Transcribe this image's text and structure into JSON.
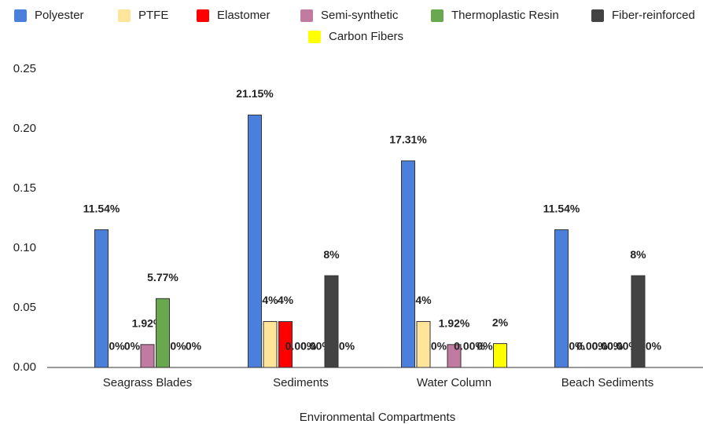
{
  "chart_data": {
    "type": "bar",
    "x_label": "Environmental Compartments",
    "categories": [
      "Seagrass Blades",
      "Sediments",
      "Water Column",
      "Beach Sediments"
    ],
    "series": [
      {
        "name": "Polyester",
        "color": "#4a7fdc",
        "values": [
          0.1154,
          0.2115,
          0.1731,
          0.1154
        ],
        "value_labels": [
          "11.54%",
          "21.15%",
          "17.31%",
          "11.54%"
        ]
      },
      {
        "name": "PTFE",
        "color": "#ffe599",
        "values": [
          0,
          0.0385,
          0.0385,
          0
        ],
        "value_labels": [
          "0%",
          "4%",
          "4%",
          "0%"
        ]
      },
      {
        "name": "Elastomer",
        "color": "#ff0000",
        "values": [
          0,
          0.0385,
          0,
          0
        ],
        "value_labels": [
          "0%",
          "4%",
          "0%",
          "0.00%"
        ]
      },
      {
        "name": "Semi-synthetic",
        "color": "#c27ba0",
        "values": [
          0.0192,
          0,
          0.0192,
          0
        ],
        "value_labels": [
          "1.92%",
          "0.00%",
          "1.92%",
          "0.00%"
        ]
      },
      {
        "name": "Thermoplastic Resin",
        "color": "#6aa84f",
        "values": [
          0.0577,
          0,
          0,
          0
        ],
        "value_labels": [
          "5.77%",
          "0.00%",
          "0.00%",
          "0.00%"
        ]
      },
      {
        "name": "Fiber-reinforced",
        "color": "#434343",
        "values": [
          0,
          0.0769,
          0,
          0.0769
        ],
        "value_labels": [
          "0%",
          "8%",
          "0%",
          "8%"
        ]
      },
      {
        "name": "Carbon Fibers",
        "color": "#ffff00",
        "values": [
          0,
          0,
          0.02,
          0
        ],
        "value_labels": [
          "0%",
          "0%",
          "2%",
          "0%"
        ]
      }
    ],
    "ylim": [
      0,
      0.25
    ],
    "yticks": [
      {
        "value": 0,
        "label": "0.00"
      },
      {
        "value": 0.05,
        "label": "0.05"
      },
      {
        "value": 0.1,
        "label": "0.10"
      },
      {
        "value": 0.15,
        "label": "0.15"
      },
      {
        "value": 0.2,
        "label": "0.20"
      },
      {
        "value": 0.25,
        "label": "0.25"
      }
    ],
    "grid": false,
    "legend": "top"
  }
}
